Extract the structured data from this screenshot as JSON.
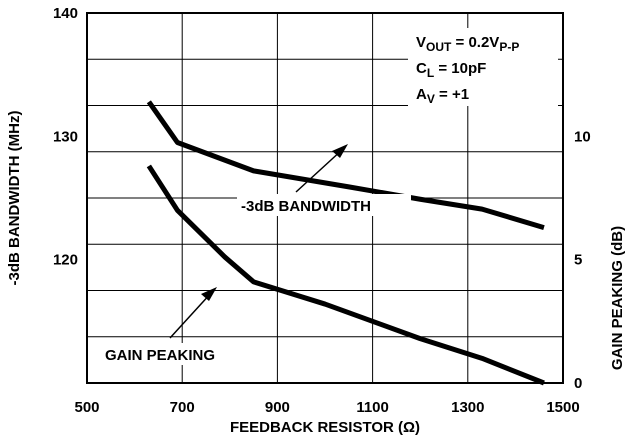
{
  "chart_data": [
    {
      "type": "line",
      "title": "",
      "xlabel": "FEEDBACK RESISTOR (Ω)",
      "ylabel": "-3dB BANDWIDTH (MHz)",
      "xlim": [
        500,
        1500
      ],
      "ylim": [
        110,
        140
      ],
      "x_ticks": [
        "500",
        "700",
        "900",
        "1100",
        "1300",
        "1500"
      ],
      "y_ticks": [
        "120",
        "130",
        "140"
      ],
      "grid": true,
      "series": [
        {
          "name": "-3dB BANDWIDTH",
          "x": [
            630,
            690,
            850,
            1050,
            1200,
            1330,
            1460
          ],
          "y": [
            132.8,
            129.5,
            127.2,
            125.9,
            124.9,
            124.1,
            122.6
          ]
        }
      ]
    },
    {
      "type": "line",
      "xlabel": "FEEDBACK RESISTOR (Ω)",
      "ylabel": "GAIN PEAKING (dB)",
      "xlim": [
        500,
        1500
      ],
      "ylim": [
        0,
        15
      ],
      "y_ticks": [
        "0",
        "5",
        "10"
      ],
      "series": [
        {
          "name": "GAIN PEAKING",
          "x": [
            630,
            690,
            790,
            850,
            1000,
            1200,
            1330,
            1460
          ],
          "y": [
            8.8,
            7.0,
            5.1,
            4.1,
            3.2,
            1.8,
            1.0,
            0.0
          ]
        }
      ]
    }
  ],
  "conditions": {
    "vout_main": "V",
    "vout_sub": "OUT",
    "vout_mid": " = 0.2V",
    "vout_sub2": "P-P",
    "cl_main": "C",
    "cl_sub": "L",
    "cl_rest": " = 10pF",
    "av_main": "A",
    "av_sub": "V",
    "av_rest": " = +1"
  },
  "annotations": {
    "bandwidth": "-3dB BANDWIDTH",
    "peaking": "GAIN PEAKING"
  }
}
